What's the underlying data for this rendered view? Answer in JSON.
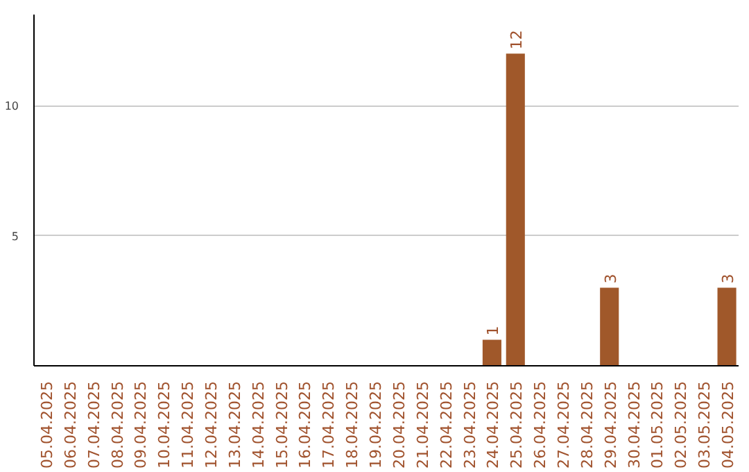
{
  "chart_data": {
    "type": "bar",
    "categories": [
      "05.04.2025",
      "06.04.2025",
      "07.04.2025",
      "08.04.2025",
      "09.04.2025",
      "10.04.2025",
      "11.04.2025",
      "12.04.2025",
      "13.04.2025",
      "14.04.2025",
      "15.04.2025",
      "16.04.2025",
      "17.04.2025",
      "18.04.2025",
      "19.04.2025",
      "20.04.2025",
      "21.04.2025",
      "22.04.2025",
      "23.04.2025",
      "24.04.2025",
      "25.04.2025",
      "26.04.2025",
      "27.04.2025",
      "28.04.2025",
      "29.04.2025",
      "30.04.2025",
      "01.05.2025",
      "02.05.2025",
      "03.05.2025",
      "04.05.2025"
    ],
    "values": [
      0,
      0,
      0,
      0,
      0,
      0,
      0,
      0,
      0,
      0,
      0,
      0,
      0,
      0,
      0,
      0,
      0,
      0,
      0,
      1,
      12,
      0,
      0,
      0,
      3,
      0,
      0,
      0,
      0,
      3
    ],
    "value_labels": [
      null,
      null,
      null,
      null,
      null,
      null,
      null,
      null,
      null,
      null,
      null,
      null,
      null,
      null,
      null,
      null,
      null,
      null,
      null,
      "1",
      "12",
      null,
      null,
      null,
      "3",
      null,
      null,
      null,
      null,
      "3"
    ],
    "color": "#a0582a",
    "ylim": [
      0,
      13.5
    ],
    "yticks": [
      5,
      10
    ],
    "grid": "y"
  }
}
